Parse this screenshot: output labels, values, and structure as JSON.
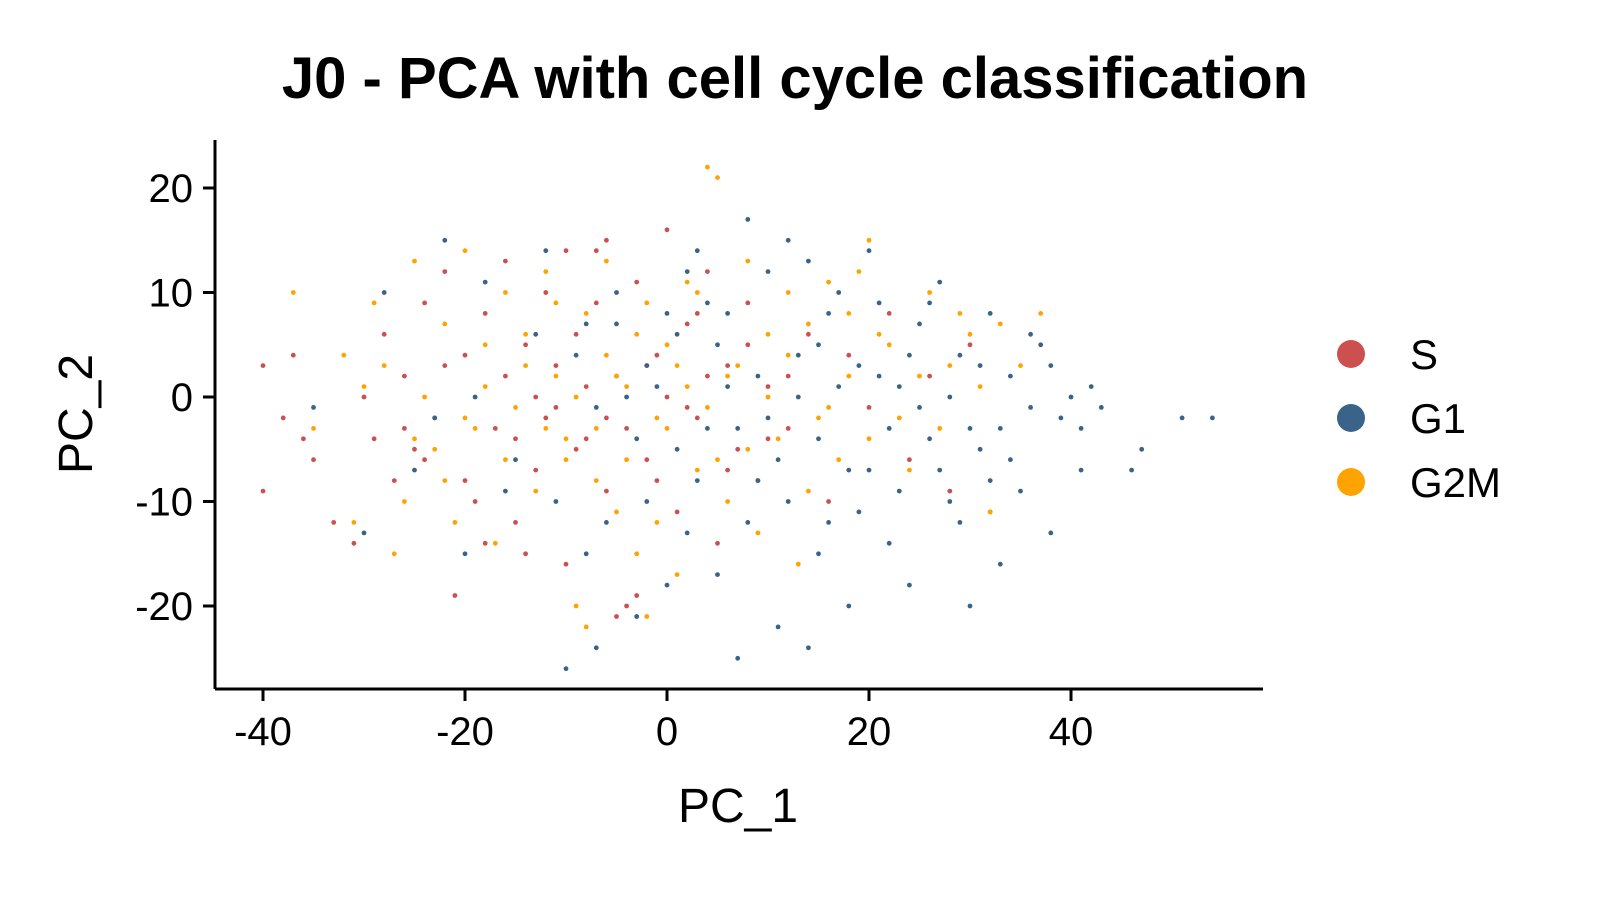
{
  "chart_data": {
    "type": "scatter",
    "title": "J0 - PCA with cell cycle classification",
    "xlabel": "PC_1",
    "ylabel": "PC_2",
    "xlim": [
      -45,
      59
    ],
    "ylim": [
      -28,
      25
    ],
    "xticks": [
      -40,
      -20,
      0,
      20,
      40
    ],
    "yticks": [
      -20,
      -10,
      0,
      10,
      20
    ],
    "grid": false,
    "legend_placement": "right",
    "series": [
      {
        "name": "S",
        "color": "#CD5050",
        "points": [
          [
            -40,
            3
          ],
          [
            -40,
            -9
          ],
          [
            -38,
            -2
          ],
          [
            -37,
            4
          ],
          [
            -36,
            -4
          ],
          [
            -35,
            -6
          ],
          [
            -33,
            -12
          ],
          [
            -31,
            -14
          ],
          [
            -29,
            -4
          ],
          [
            -28,
            6
          ],
          [
            -27,
            -8
          ],
          [
            -26,
            2
          ],
          [
            -25,
            -5
          ],
          [
            -24,
            9
          ],
          [
            -23,
            -2
          ],
          [
            -22,
            12
          ],
          [
            -21,
            -19
          ],
          [
            -20,
            4
          ],
          [
            -19,
            -10
          ],
          [
            -18,
            8
          ],
          [
            -17,
            -3
          ],
          [
            -16,
            13
          ],
          [
            -15,
            -12
          ],
          [
            -14,
            5
          ],
          [
            -13,
            -7
          ],
          [
            -12,
            10
          ],
          [
            -11,
            -1
          ],
          [
            -10,
            -16
          ],
          [
            -9,
            6
          ],
          [
            -8,
            -4
          ],
          [
            -7,
            14
          ],
          [
            -6,
            -9
          ],
          [
            -5,
            2
          ],
          [
            -4,
            -20
          ],
          [
            -3,
            11
          ],
          [
            -2,
            -6
          ],
          [
            -1,
            4
          ],
          [
            0,
            16
          ],
          [
            1,
            -11
          ],
          [
            2,
            7
          ],
          [
            3,
            -2
          ],
          [
            4,
            12
          ],
          [
            5,
            -14
          ],
          [
            6,
            3
          ],
          [
            7,
            -5
          ],
          [
            8,
            9
          ],
          [
            9,
            -8
          ],
          [
            10,
            1
          ],
          [
            12,
            -3
          ],
          [
            14,
            6
          ],
          [
            16,
            -10
          ],
          [
            18,
            4
          ],
          [
            20,
            -1
          ],
          [
            22,
            8
          ],
          [
            24,
            -6
          ],
          [
            26,
            2
          ],
          [
            28,
            -9
          ],
          [
            30,
            5
          ],
          [
            32,
            -11
          ],
          [
            -5,
            -21
          ],
          [
            -3,
            -19
          ],
          [
            -6,
            15
          ],
          [
            -10,
            14
          ],
          [
            -14,
            -15
          ],
          [
            -18,
            -14
          ],
          [
            -24,
            -6
          ],
          [
            -16,
            2
          ],
          [
            -12,
            -2
          ],
          [
            -8,
            1
          ],
          [
            -4,
            -3
          ],
          [
            0,
            0
          ],
          [
            2,
            -1
          ],
          [
            4,
            2
          ],
          [
            -2,
            3
          ],
          [
            -6,
            -2
          ],
          [
            -9,
            -5
          ],
          [
            -11,
            3
          ],
          [
            -13,
            0
          ],
          [
            -15,
            -4
          ],
          [
            -20,
            -8
          ],
          [
            -22,
            3
          ],
          [
            -26,
            -3
          ],
          [
            -30,
            0
          ],
          [
            6,
            -7
          ],
          [
            8,
            5
          ],
          [
            10,
            -4
          ],
          [
            12,
            2
          ],
          [
            3,
            8
          ],
          [
            -1,
            -8
          ],
          [
            -7,
            9
          ]
        ]
      },
      {
        "name": "G1",
        "color": "#3A6389",
        "points": [
          [
            -35,
            -1
          ],
          [
            -30,
            -13
          ],
          [
            -28,
            10
          ],
          [
            -25,
            -7
          ],
          [
            -22,
            15
          ],
          [
            -20,
            -15
          ],
          [
            -18,
            11
          ],
          [
            -15,
            -6
          ],
          [
            -12,
            14
          ],
          [
            -10,
            -26
          ],
          [
            -8,
            -15
          ],
          [
            -7,
            -24
          ],
          [
            -5,
            10
          ],
          [
            -3,
            -21
          ],
          [
            -2,
            3
          ],
          [
            0,
            -18
          ],
          [
            1,
            6
          ],
          [
            2,
            -13
          ],
          [
            3,
            14
          ],
          [
            4,
            -3
          ],
          [
            5,
            -17
          ],
          [
            6,
            8
          ],
          [
            7,
            -25
          ],
          [
            8,
            17
          ],
          [
            9,
            -8
          ],
          [
            10,
            12
          ],
          [
            11,
            -22
          ],
          [
            12,
            15
          ],
          [
            13,
            0
          ],
          [
            14,
            -24
          ],
          [
            15,
            5
          ],
          [
            16,
            -12
          ],
          [
            17,
            10
          ],
          [
            18,
            -20
          ],
          [
            19,
            3
          ],
          [
            20,
            -7
          ],
          [
            21,
            9
          ],
          [
            22,
            -14
          ],
          [
            23,
            1
          ],
          [
            24,
            -18
          ],
          [
            25,
            7
          ],
          [
            26,
            -4
          ],
          [
            27,
            11
          ],
          [
            28,
            -10
          ],
          [
            29,
            4
          ],
          [
            30,
            -20
          ],
          [
            31,
            -5
          ],
          [
            32,
            8
          ],
          [
            33,
            -16
          ],
          [
            34,
            2
          ],
          [
            35,
            -9
          ],
          [
            36,
            6
          ],
          [
            37,
            5
          ],
          [
            38,
            -13
          ],
          [
            39,
            -2
          ],
          [
            40,
            0
          ],
          [
            41,
            -3
          ],
          [
            42,
            1
          ],
          [
            43,
            -1
          ],
          [
            46,
            -7
          ],
          [
            47,
            -5
          ],
          [
            51,
            -2
          ],
          [
            54,
            -2
          ],
          [
            18,
            -7
          ],
          [
            20,
            14
          ],
          [
            15,
            -15
          ],
          [
            22,
            -3
          ],
          [
            27,
            -7
          ],
          [
            13,
            4
          ],
          [
            11,
            -6
          ],
          [
            9,
            2
          ],
          [
            7,
            -3
          ],
          [
            5,
            5
          ],
          [
            3,
            -8
          ],
          [
            1,
            -5
          ],
          [
            -1,
            1
          ],
          [
            -3,
            -4
          ],
          [
            -5,
            7
          ],
          [
            -7,
            -1
          ],
          [
            -9,
            4
          ],
          [
            -11,
            -10
          ],
          [
            -13,
            6
          ],
          [
            -16,
            -9
          ],
          [
            -19,
            0
          ],
          [
            -23,
            -2
          ],
          [
            24,
            4
          ],
          [
            26,
            9
          ],
          [
            28,
            0
          ],
          [
            30,
            -3
          ],
          [
            32,
            -8
          ],
          [
            34,
            -6
          ],
          [
            36,
            -1
          ],
          [
            14,
            13
          ],
          [
            16,
            8
          ],
          [
            12,
            -10
          ],
          [
            10,
            -2
          ],
          [
            8,
            -12
          ],
          [
            6,
            1
          ],
          [
            4,
            9
          ],
          [
            2,
            12
          ],
          [
            0,
            8
          ],
          [
            -2,
            -10
          ],
          [
            -4,
            0
          ],
          [
            -6,
            -12
          ],
          [
            -8,
            7
          ],
          [
            19,
            -11
          ],
          [
            21,
            2
          ],
          [
            23,
            -9
          ],
          [
            25,
            -1
          ],
          [
            17,
            1
          ],
          [
            15,
            -4
          ],
          [
            29,
            -12
          ],
          [
            31,
            3
          ],
          [
            33,
            -3
          ],
          [
            41,
            -7
          ],
          [
            38,
            3
          ]
        ]
      },
      {
        "name": "G2M",
        "color": "#FFA300",
        "points": [
          [
            -37,
            10
          ],
          [
            -35,
            -3
          ],
          [
            -32,
            4
          ],
          [
            -31,
            -12
          ],
          [
            -30,
            1
          ],
          [
            -29,
            9
          ],
          [
            -27,
            -15
          ],
          [
            -26,
            -10
          ],
          [
            -25,
            13
          ],
          [
            -24,
            0
          ],
          [
            -23,
            -5
          ],
          [
            -22,
            7
          ],
          [
            -21,
            -12
          ],
          [
            -20,
            14
          ],
          [
            -19,
            -3
          ],
          [
            -18,
            5
          ],
          [
            -17,
            -14
          ],
          [
            -16,
            10
          ],
          [
            -15,
            -1
          ],
          [
            -14,
            6
          ],
          [
            -13,
            -9
          ],
          [
            -12,
            12
          ],
          [
            -11,
            2
          ],
          [
            -10,
            -6
          ],
          [
            -9,
            -20
          ],
          [
            -8,
            8
          ],
          [
            -7,
            -3
          ],
          [
            -6,
            13
          ],
          [
            -5,
            -11
          ],
          [
            -4,
            1
          ],
          [
            -3,
            -15
          ],
          [
            -2,
            9
          ],
          [
            -1,
            -2
          ],
          [
            0,
            5
          ],
          [
            1,
            -17
          ],
          [
            2,
            11
          ],
          [
            3,
            -7
          ],
          [
            4,
            22
          ],
          [
            5,
            21
          ],
          [
            6,
            -10
          ],
          [
            7,
            3
          ],
          [
            8,
            13
          ],
          [
            9,
            -13
          ],
          [
            10,
            6
          ],
          [
            11,
            -4
          ],
          [
            12,
            10
          ],
          [
            13,
            -16
          ],
          [
            14,
            7
          ],
          [
            15,
            -2
          ],
          [
            16,
            11
          ],
          [
            17,
            -6
          ],
          [
            18,
            2
          ],
          [
            19,
            12
          ],
          [
            20,
            15
          ],
          [
            22,
            5
          ],
          [
            24,
            -7
          ],
          [
            26,
            10
          ],
          [
            28,
            3
          ],
          [
            30,
            6
          ],
          [
            32,
            -11
          ],
          [
            33,
            7
          ],
          [
            35,
            3
          ],
          [
            37,
            8
          ],
          [
            -8,
            -22
          ],
          [
            -2,
            -21
          ],
          [
            -10,
            -4
          ],
          [
            -6,
            4
          ],
          [
            -4,
            -6
          ],
          [
            0,
            -3
          ],
          [
            2,
            1
          ],
          [
            4,
            -1
          ],
          [
            6,
            2
          ],
          [
            -12,
            -3
          ],
          [
            -14,
            3
          ],
          [
            -16,
            -6
          ],
          [
            -18,
            1
          ],
          [
            -20,
            -2
          ],
          [
            -22,
            -8
          ],
          [
            -25,
            -4
          ],
          [
            -28,
            3
          ],
          [
            8,
            -5
          ],
          [
            10,
            0
          ],
          [
            12,
            4
          ],
          [
            14,
            -9
          ],
          [
            16,
            -1
          ],
          [
            18,
            8
          ],
          [
            20,
            -4
          ],
          [
            21,
            6
          ],
          [
            23,
            -2
          ],
          [
            25,
            2
          ],
          [
            27,
            -3
          ],
          [
            29,
            8
          ],
          [
            31,
            1
          ],
          [
            -3,
            6
          ],
          [
            -7,
            -8
          ],
          [
            -11,
            9
          ],
          [
            1,
            3
          ],
          [
            3,
            10
          ],
          [
            -1,
            -12
          ],
          [
            5,
            -6
          ],
          [
            -9,
            0
          ],
          [
            -5,
            2
          ]
        ]
      }
    ]
  }
}
